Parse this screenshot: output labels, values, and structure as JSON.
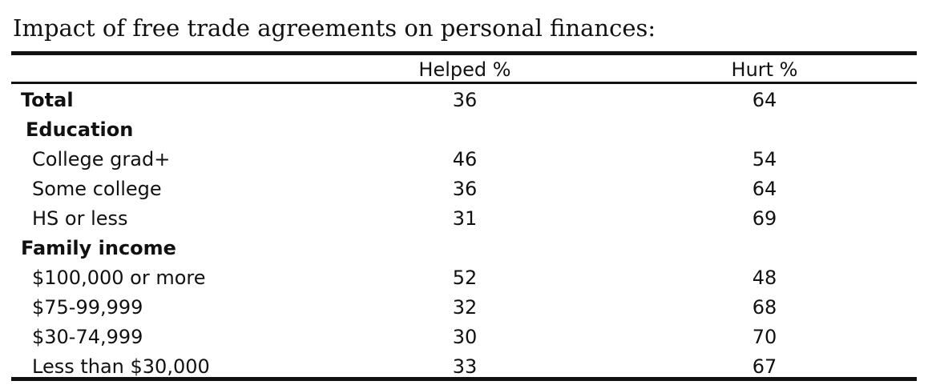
{
  "title": "Impact of free trade agreements on personal finances:",
  "chart_data": {
    "type": "table",
    "columns": [
      "Helped %",
      "Hurt %"
    ],
    "rows": [
      {
        "label": "Total",
        "style": "total",
        "helped": "36",
        "hurt": "64"
      },
      {
        "label": "Education",
        "style": "group",
        "helped": "",
        "hurt": ""
      },
      {
        "label": "College grad+",
        "style": "item",
        "helped": "46",
        "hurt": "54"
      },
      {
        "label": "Some college",
        "style": "item",
        "helped": "36",
        "hurt": "64"
      },
      {
        "label": "HS or less",
        "style": "item",
        "helped": "31",
        "hurt": "69"
      },
      {
        "label": "Family income",
        "style": "group-flush",
        "helped": "",
        "hurt": ""
      },
      {
        "label": "$100,000 or more",
        "style": "item",
        "helped": "52",
        "hurt": "48"
      },
      {
        "label": "$75-99,999",
        "style": "item",
        "helped": "32",
        "hurt": "68"
      },
      {
        "label": "$30-74,999",
        "style": "item",
        "helped": "30",
        "hurt": "70"
      },
      {
        "label": "Less than $30,000",
        "style": "item",
        "helped": "33",
        "hurt": "67"
      }
    ]
  }
}
